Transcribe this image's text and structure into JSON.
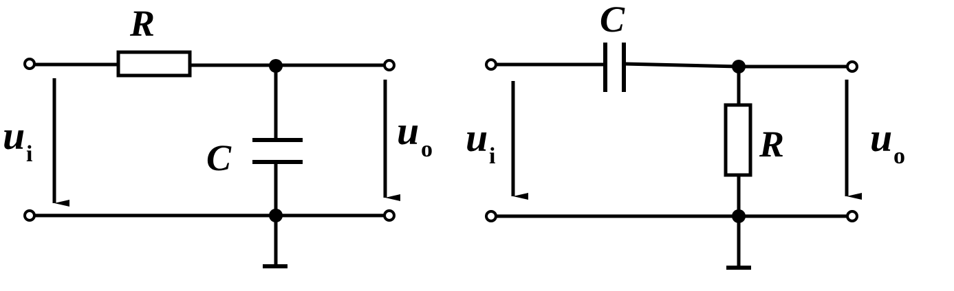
{
  "circuits": [
    {
      "resistor_label": "R",
      "capacitor_label": "C",
      "input_voltage": {
        "symbol": "u",
        "subscript": "i"
      },
      "output_voltage": {
        "symbol": "u",
        "subscript": "o"
      }
    },
    {
      "resistor_label": "R",
      "capacitor_label": "C",
      "input_voltage": {
        "symbol": "u",
        "subscript": "i"
      },
      "output_voltage": {
        "symbol": "u",
        "subscript": "o"
      }
    }
  ]
}
